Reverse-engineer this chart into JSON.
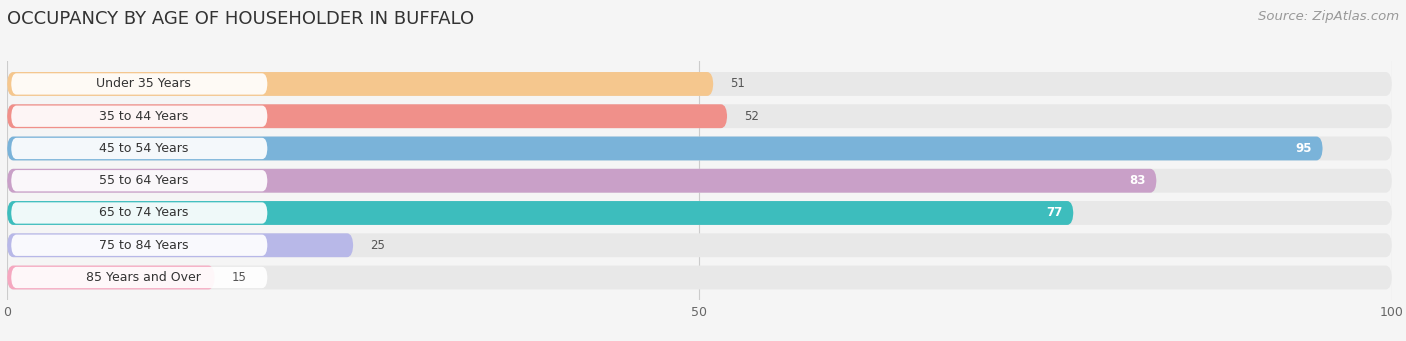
{
  "title": "OCCUPANCY BY AGE OF HOUSEHOLDER IN BUFFALO",
  "source": "Source: ZipAtlas.com",
  "categories": [
    "Under 35 Years",
    "35 to 44 Years",
    "45 to 54 Years",
    "55 to 64 Years",
    "65 to 74 Years",
    "75 to 84 Years",
    "85 Years and Over"
  ],
  "values": [
    51,
    52,
    95,
    83,
    77,
    25,
    15
  ],
  "bar_colors": [
    "#f5c78e",
    "#f0908a",
    "#7ab3d9",
    "#c9a0c8",
    "#3dbdbd",
    "#b8b8e8",
    "#f5a8c0"
  ],
  "xlim": [
    0,
    100
  ],
  "background_color": "#f5f5f5",
  "bar_background_color": "#e8e8e8",
  "title_fontsize": 13,
  "source_fontsize": 9.5,
  "label_fontsize": 9,
  "value_fontsize": 8.5,
  "bar_height": 0.74,
  "bar_gap": 1.0
}
